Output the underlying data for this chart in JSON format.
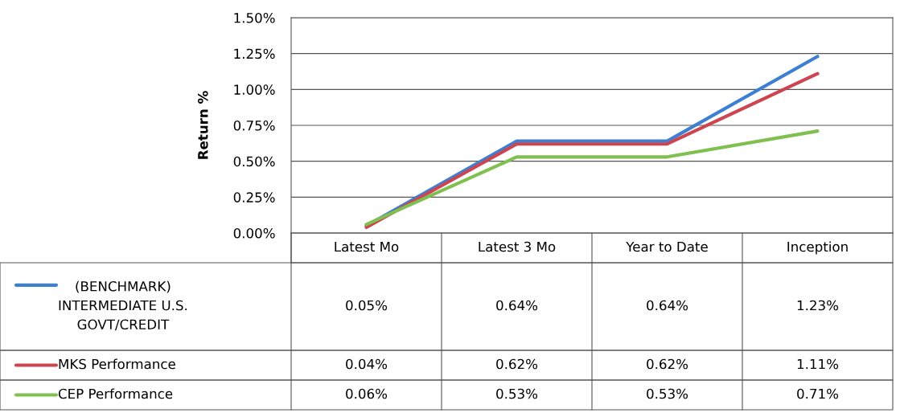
{
  "chart_data": {
    "type": "line",
    "ylabel": "Return %",
    "categories": [
      "Latest Mo",
      "Latest 3 Mo",
      "Year to Date",
      "Inception"
    ],
    "series": [
      {
        "name": "(BENCHMARK)\nINTERMEDIATE U.S.\nGOVT/CREDIT",
        "color": "#3d7fd0",
        "values": [
          0.05,
          0.64,
          0.64,
          1.23
        ],
        "value_labels": [
          "0.05%",
          "0.64%",
          "0.64%",
          "1.23%"
        ]
      },
      {
        "name": "MKS Performance",
        "color": "#cc4550",
        "values": [
          0.04,
          0.62,
          0.62,
          1.11
        ],
        "value_labels": [
          "0.04%",
          "0.62%",
          "0.62%",
          "1.11%"
        ]
      },
      {
        "name": "CEP Performance",
        "color": "#80c050",
        "values": [
          0.06,
          0.53,
          0.53,
          0.71
        ],
        "value_labels": [
          "0.06%",
          "0.53%",
          "0.53%",
          "0.71%"
        ]
      }
    ],
    "ylim": [
      0,
      1.5
    ],
    "yticks": [
      {
        "value": 0,
        "label": "0.00%"
      },
      {
        "value": 0.25,
        "label": "0.25%"
      },
      {
        "value": 0.5,
        "label": "0.50%"
      },
      {
        "value": 0.75,
        "label": "0.75%"
      },
      {
        "value": 1.0,
        "label": "1.00%"
      },
      {
        "value": 1.25,
        "label": "1.25%"
      },
      {
        "value": 1.5,
        "label": "1.50%"
      }
    ],
    "grid": "y",
    "legend": "bottom",
    "line_style": "solid",
    "marker": "none"
  }
}
